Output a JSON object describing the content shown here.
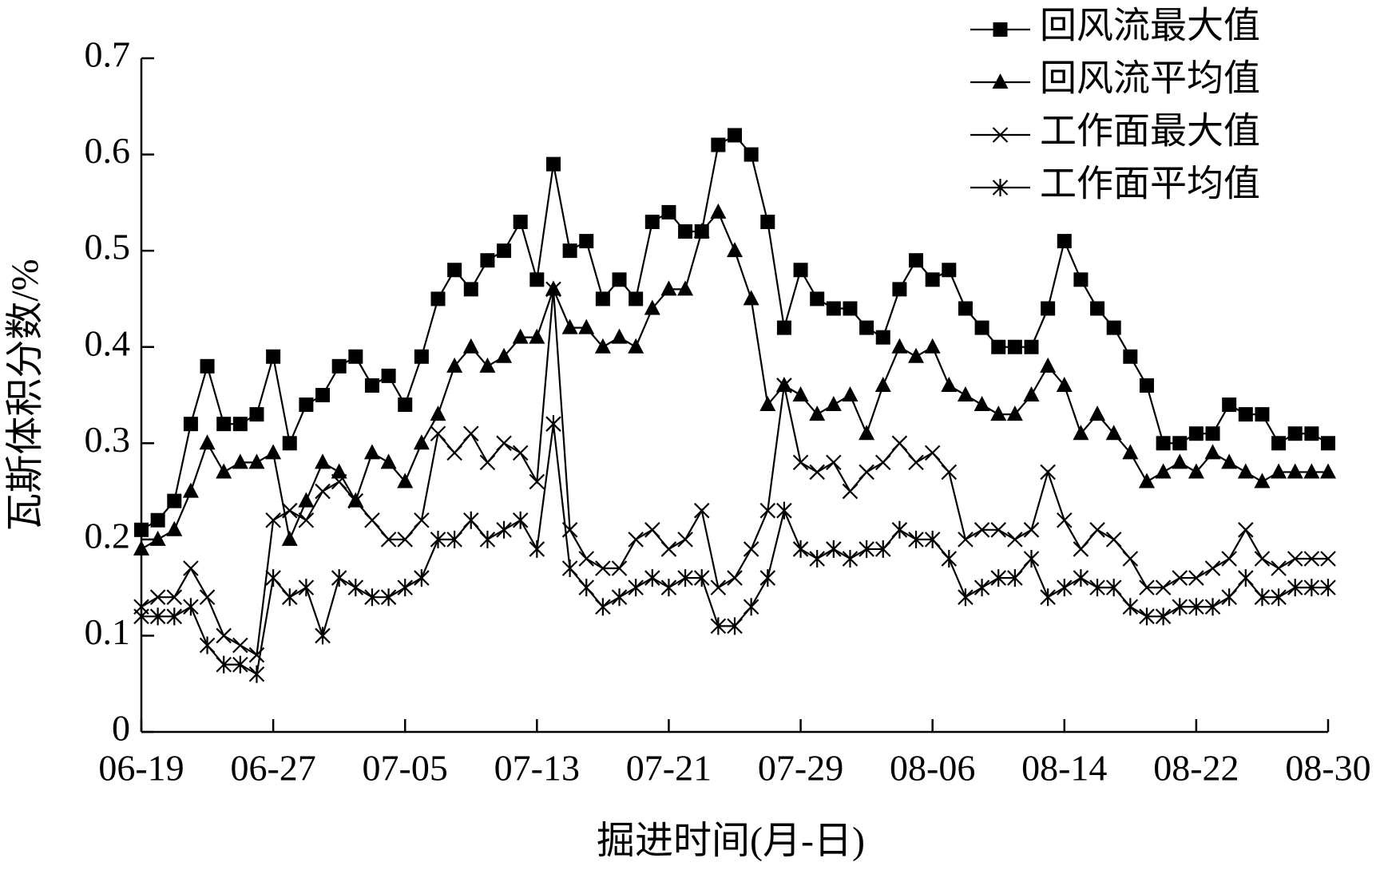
{
  "chart_data": {
    "type": "line",
    "x_label": "掘进时间(月-日)",
    "y_label": "瓦斯体积分数/%",
    "categories": [
      "06-19",
      null,
      null,
      null,
      null,
      null,
      null,
      null,
      "06-27",
      null,
      null,
      null,
      null,
      null,
      null,
      null,
      "07-05",
      null,
      null,
      null,
      null,
      null,
      null,
      null,
      "07-13",
      null,
      null,
      null,
      null,
      null,
      null,
      null,
      "07-21",
      null,
      null,
      null,
      null,
      null,
      null,
      null,
      "07-29",
      null,
      null,
      null,
      null,
      null,
      null,
      null,
      "08-06",
      null,
      null,
      null,
      null,
      null,
      null,
      null,
      "08-14",
      null,
      null,
      null,
      null,
      null,
      null,
      null,
      "08-22",
      null,
      null,
      null,
      null,
      null,
      null,
      null,
      "08-30"
    ],
    "ylim": [
      0,
      0.7
    ],
    "yticks": [
      0,
      0.1,
      0.2,
      0.3,
      0.4,
      0.5,
      0.6,
      0.7
    ],
    "grid": false,
    "legend": "top-right",
    "series": [
      {
        "name": "回风流最大值",
        "color": "#000000",
        "marker": "square",
        "values": [
          0.21,
          0.22,
          0.24,
          0.32,
          0.38,
          0.32,
          0.32,
          0.33,
          0.39,
          0.3,
          0.34,
          0.35,
          0.38,
          0.39,
          0.36,
          0.37,
          0.34,
          0.39,
          0.45,
          0.48,
          0.46,
          0.49,
          0.5,
          0.53,
          0.47,
          0.59,
          0.5,
          0.51,
          0.45,
          0.47,
          0.45,
          0.53,
          0.54,
          0.52,
          0.52,
          0.61,
          0.62,
          0.6,
          0.53,
          0.42,
          0.48,
          0.45,
          0.44,
          0.44,
          0.42,
          0.41,
          0.46,
          0.49,
          0.47,
          0.48,
          0.44,
          0.42,
          0.4,
          0.4,
          0.4,
          0.44,
          0.51,
          0.47,
          0.44,
          0.42,
          0.39,
          0.36,
          0.3,
          0.3,
          0.31,
          0.31,
          0.34,
          0.33,
          0.33,
          0.3,
          0.31,
          0.31,
          0.3
        ]
      },
      {
        "name": "回风流平均值",
        "color": "#000000",
        "marker": "triangle",
        "values": [
          0.19,
          0.2,
          0.21,
          0.25,
          0.3,
          0.27,
          0.28,
          0.28,
          0.29,
          0.2,
          0.24,
          0.28,
          0.27,
          0.24,
          0.29,
          0.28,
          0.26,
          0.3,
          0.33,
          0.38,
          0.4,
          0.38,
          0.39,
          0.41,
          0.41,
          0.46,
          0.42,
          0.42,
          0.4,
          0.41,
          0.4,
          0.44,
          0.46,
          0.46,
          0.52,
          0.54,
          0.5,
          0.45,
          0.34,
          0.36,
          0.35,
          0.33,
          0.34,
          0.35,
          0.31,
          0.36,
          0.4,
          0.39,
          0.4,
          0.36,
          0.35,
          0.34,
          0.33,
          0.33,
          0.35,
          0.38,
          0.36,
          0.31,
          0.33,
          0.31,
          0.29,
          0.26,
          0.27,
          0.28,
          0.27,
          0.29,
          0.28,
          0.27,
          0.26,
          0.27,
          0.27,
          0.27,
          0.27
        ]
      },
      {
        "name": "工作面最大值",
        "color": "#000000",
        "marker": "x",
        "values": [
          0.13,
          0.14,
          0.14,
          0.17,
          0.14,
          0.1,
          0.09,
          0.08,
          0.22,
          0.23,
          0.22,
          0.25,
          0.26,
          0.24,
          0.22,
          0.2,
          0.2,
          0.22,
          0.31,
          0.29,
          0.31,
          0.28,
          0.3,
          0.29,
          0.26,
          0.46,
          0.21,
          0.18,
          0.17,
          0.17,
          0.2,
          0.21,
          0.19,
          0.2,
          0.23,
          0.15,
          0.16,
          0.19,
          0.23,
          0.36,
          0.28,
          0.27,
          0.28,
          0.25,
          0.27,
          0.28,
          0.3,
          0.28,
          0.29,
          0.27,
          0.2,
          0.21,
          0.21,
          0.2,
          0.21,
          0.27,
          0.22,
          0.19,
          0.21,
          0.2,
          0.18,
          0.15,
          0.15,
          0.16,
          0.16,
          0.17,
          0.18,
          0.21,
          0.18,
          0.17,
          0.18,
          0.18,
          0.18
        ]
      },
      {
        "name": "工作面平均值",
        "color": "#000000",
        "marker": "star",
        "values": [
          0.12,
          0.12,
          0.12,
          0.13,
          0.09,
          0.07,
          0.07,
          0.06,
          0.16,
          0.14,
          0.15,
          0.1,
          0.16,
          0.15,
          0.14,
          0.14,
          0.15,
          0.16,
          0.2,
          0.2,
          0.22,
          0.2,
          0.21,
          0.22,
          0.19,
          0.32,
          0.17,
          0.15,
          0.13,
          0.14,
          0.15,
          0.16,
          0.15,
          0.16,
          0.16,
          0.11,
          0.11,
          0.13,
          0.16,
          0.23,
          0.19,
          0.18,
          0.19,
          0.18,
          0.19,
          0.19,
          0.21,
          0.2,
          0.2,
          0.18,
          0.14,
          0.15,
          0.16,
          0.16,
          0.18,
          0.14,
          0.15,
          0.16,
          0.15,
          0.15,
          0.13,
          0.12,
          0.12,
          0.13,
          0.13,
          0.13,
          0.14,
          0.16,
          0.14,
          0.14,
          0.15,
          0.15,
          0.15
        ]
      }
    ]
  }
}
